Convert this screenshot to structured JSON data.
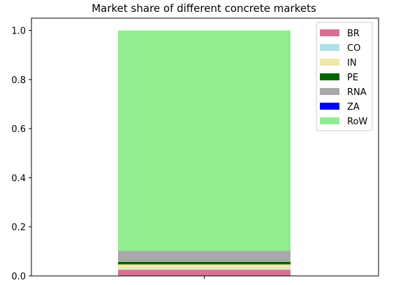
{
  "chart_data": {
    "type": "bar",
    "stacked": true,
    "title": "Market share of different concrete markets",
    "xlabel": "",
    "ylabel": "",
    "categories": [
      ""
    ],
    "ylim": [
      0,
      1.05
    ],
    "yticks": [
      "0.0",
      "0.2",
      "0.4",
      "0.6",
      "0.8",
      "1.0"
    ],
    "ytick_values": [
      0,
      0.2,
      0.4,
      0.6,
      0.8,
      1.0
    ],
    "grid": false,
    "legend_position": "top-right",
    "series": [
      {
        "name": "BR",
        "color": "#DB7093",
        "values": [
          0.025
        ]
      },
      {
        "name": "CO",
        "color": "#B0E0E6",
        "values": [
          0.003
        ]
      },
      {
        "name": "IN",
        "color": "#EEE8AA",
        "values": [
          0.019
        ]
      },
      {
        "name": "PE",
        "color": "#006400",
        "values": [
          0.01
        ]
      },
      {
        "name": "RNA",
        "color": "#A9A9A9",
        "values": [
          0.045
        ]
      },
      {
        "name": "ZA",
        "color": "#0000FF",
        "values": [
          0.0
        ]
      },
      {
        "name": "RoW",
        "color": "#90EE90",
        "values": [
          0.898
        ]
      }
    ]
  }
}
